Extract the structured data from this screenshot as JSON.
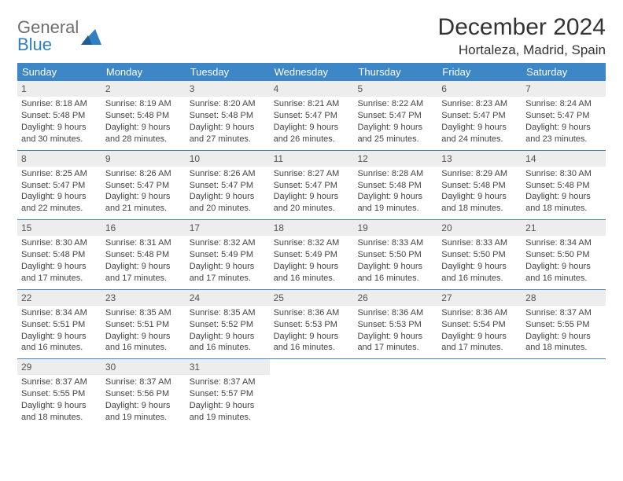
{
  "brand": {
    "word1": "General",
    "word2": "Blue"
  },
  "title": "December 2024",
  "location": "Hortaleza, Madrid, Spain",
  "colors": {
    "header_bg": "#3d87c7",
    "header_text": "#ffffff",
    "daynum_bg": "#ededed",
    "rule": "#3d87c7",
    "brand_gray": "#6e6e6e",
    "brand_blue": "#2f7fc2"
  },
  "weekdays": [
    "Sunday",
    "Monday",
    "Tuesday",
    "Wednesday",
    "Thursday",
    "Friday",
    "Saturday"
  ],
  "weeks": [
    [
      {
        "n": "1",
        "sunrise": "Sunrise: 8:18 AM",
        "sunset": "Sunset: 5:48 PM",
        "day": "Daylight: 9 hours and 30 minutes."
      },
      {
        "n": "2",
        "sunrise": "Sunrise: 8:19 AM",
        "sunset": "Sunset: 5:48 PM",
        "day": "Daylight: 9 hours and 28 minutes."
      },
      {
        "n": "3",
        "sunrise": "Sunrise: 8:20 AM",
        "sunset": "Sunset: 5:48 PM",
        "day": "Daylight: 9 hours and 27 minutes."
      },
      {
        "n": "4",
        "sunrise": "Sunrise: 8:21 AM",
        "sunset": "Sunset: 5:47 PM",
        "day": "Daylight: 9 hours and 26 minutes."
      },
      {
        "n": "5",
        "sunrise": "Sunrise: 8:22 AM",
        "sunset": "Sunset: 5:47 PM",
        "day": "Daylight: 9 hours and 25 minutes."
      },
      {
        "n": "6",
        "sunrise": "Sunrise: 8:23 AM",
        "sunset": "Sunset: 5:47 PM",
        "day": "Daylight: 9 hours and 24 minutes."
      },
      {
        "n": "7",
        "sunrise": "Sunrise: 8:24 AM",
        "sunset": "Sunset: 5:47 PM",
        "day": "Daylight: 9 hours and 23 minutes."
      }
    ],
    [
      {
        "n": "8",
        "sunrise": "Sunrise: 8:25 AM",
        "sunset": "Sunset: 5:47 PM",
        "day": "Daylight: 9 hours and 22 minutes."
      },
      {
        "n": "9",
        "sunrise": "Sunrise: 8:26 AM",
        "sunset": "Sunset: 5:47 PM",
        "day": "Daylight: 9 hours and 21 minutes."
      },
      {
        "n": "10",
        "sunrise": "Sunrise: 8:26 AM",
        "sunset": "Sunset: 5:47 PM",
        "day": "Daylight: 9 hours and 20 minutes."
      },
      {
        "n": "11",
        "sunrise": "Sunrise: 8:27 AM",
        "sunset": "Sunset: 5:47 PM",
        "day": "Daylight: 9 hours and 20 minutes."
      },
      {
        "n": "12",
        "sunrise": "Sunrise: 8:28 AM",
        "sunset": "Sunset: 5:48 PM",
        "day": "Daylight: 9 hours and 19 minutes."
      },
      {
        "n": "13",
        "sunrise": "Sunrise: 8:29 AM",
        "sunset": "Sunset: 5:48 PM",
        "day": "Daylight: 9 hours and 18 minutes."
      },
      {
        "n": "14",
        "sunrise": "Sunrise: 8:30 AM",
        "sunset": "Sunset: 5:48 PM",
        "day": "Daylight: 9 hours and 18 minutes."
      }
    ],
    [
      {
        "n": "15",
        "sunrise": "Sunrise: 8:30 AM",
        "sunset": "Sunset: 5:48 PM",
        "day": "Daylight: 9 hours and 17 minutes."
      },
      {
        "n": "16",
        "sunrise": "Sunrise: 8:31 AM",
        "sunset": "Sunset: 5:48 PM",
        "day": "Daylight: 9 hours and 17 minutes."
      },
      {
        "n": "17",
        "sunrise": "Sunrise: 8:32 AM",
        "sunset": "Sunset: 5:49 PM",
        "day": "Daylight: 9 hours and 17 minutes."
      },
      {
        "n": "18",
        "sunrise": "Sunrise: 8:32 AM",
        "sunset": "Sunset: 5:49 PM",
        "day": "Daylight: 9 hours and 16 minutes."
      },
      {
        "n": "19",
        "sunrise": "Sunrise: 8:33 AM",
        "sunset": "Sunset: 5:50 PM",
        "day": "Daylight: 9 hours and 16 minutes."
      },
      {
        "n": "20",
        "sunrise": "Sunrise: 8:33 AM",
        "sunset": "Sunset: 5:50 PM",
        "day": "Daylight: 9 hours and 16 minutes."
      },
      {
        "n": "21",
        "sunrise": "Sunrise: 8:34 AM",
        "sunset": "Sunset: 5:50 PM",
        "day": "Daylight: 9 hours and 16 minutes."
      }
    ],
    [
      {
        "n": "22",
        "sunrise": "Sunrise: 8:34 AM",
        "sunset": "Sunset: 5:51 PM",
        "day": "Daylight: 9 hours and 16 minutes."
      },
      {
        "n": "23",
        "sunrise": "Sunrise: 8:35 AM",
        "sunset": "Sunset: 5:51 PM",
        "day": "Daylight: 9 hours and 16 minutes."
      },
      {
        "n": "24",
        "sunrise": "Sunrise: 8:35 AM",
        "sunset": "Sunset: 5:52 PM",
        "day": "Daylight: 9 hours and 16 minutes."
      },
      {
        "n": "25",
        "sunrise": "Sunrise: 8:36 AM",
        "sunset": "Sunset: 5:53 PM",
        "day": "Daylight: 9 hours and 16 minutes."
      },
      {
        "n": "26",
        "sunrise": "Sunrise: 8:36 AM",
        "sunset": "Sunset: 5:53 PM",
        "day": "Daylight: 9 hours and 17 minutes."
      },
      {
        "n": "27",
        "sunrise": "Sunrise: 8:36 AM",
        "sunset": "Sunset: 5:54 PM",
        "day": "Daylight: 9 hours and 17 minutes."
      },
      {
        "n": "28",
        "sunrise": "Sunrise: 8:37 AM",
        "sunset": "Sunset: 5:55 PM",
        "day": "Daylight: 9 hours and 18 minutes."
      }
    ],
    [
      {
        "n": "29",
        "sunrise": "Sunrise: 8:37 AM",
        "sunset": "Sunset: 5:55 PM",
        "day": "Daylight: 9 hours and 18 minutes."
      },
      {
        "n": "30",
        "sunrise": "Sunrise: 8:37 AM",
        "sunset": "Sunset: 5:56 PM",
        "day": "Daylight: 9 hours and 19 minutes."
      },
      {
        "n": "31",
        "sunrise": "Sunrise: 8:37 AM",
        "sunset": "Sunset: 5:57 PM",
        "day": "Daylight: 9 hours and 19 minutes."
      },
      {
        "empty": true
      },
      {
        "empty": true
      },
      {
        "empty": true
      },
      {
        "empty": true
      }
    ]
  ]
}
